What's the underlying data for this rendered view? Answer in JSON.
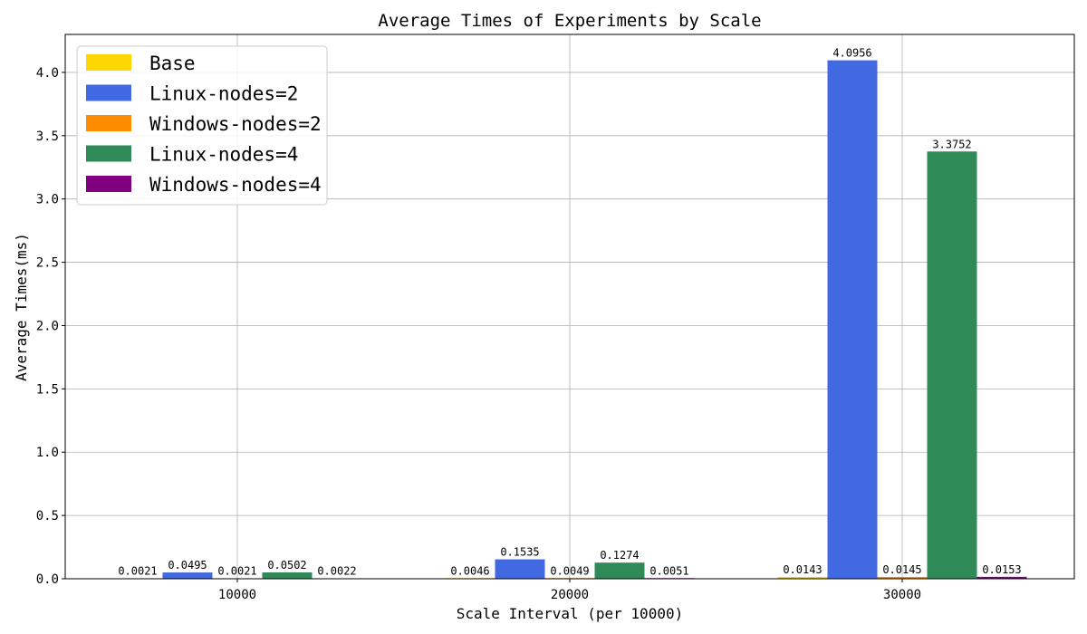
{
  "chart_data": {
    "type": "bar",
    "title": "Average Times of Experiments by Scale",
    "xlabel": "Scale Interval (per 10000)",
    "ylabel": "Average Times(ms)",
    "categories": [
      "10000",
      "20000",
      "30000"
    ],
    "ylim": [
      0,
      4.3
    ],
    "yticks": [
      "0.0",
      "0.5",
      "1.0",
      "1.5",
      "2.0",
      "2.5",
      "3.0",
      "3.5",
      "4.0"
    ],
    "grid": true,
    "legend_position": "top-left",
    "series": [
      {
        "name": "Base",
        "color": "#ffd700",
        "values": [
          0.0021,
          0.0046,
          0.0143
        ],
        "labels": [
          "0.0021",
          "0.0046",
          "0.0143"
        ]
      },
      {
        "name": "Linux-nodes=2",
        "color": "#4169e1",
        "values": [
          0.0495,
          0.1535,
          4.0956
        ],
        "labels": [
          "0.0495",
          "0.1535",
          "4.0956"
        ]
      },
      {
        "name": "Windows-nodes=2",
        "color": "#ff8c00",
        "values": [
          0.0021,
          0.0049,
          0.0145
        ],
        "labels": [
          "0.0021",
          "0.0049",
          "0.0145"
        ]
      },
      {
        "name": "Linux-nodes=4",
        "color": "#2e8b57",
        "values": [
          0.0502,
          0.1274,
          3.3752
        ],
        "labels": [
          "0.0502",
          "0.1274",
          "3.3752"
        ]
      },
      {
        "name": "Windows-nodes=4",
        "color": "#800080",
        "values": [
          0.0022,
          0.0051,
          0.0153
        ],
        "labels": [
          "0.0022",
          "0.0051",
          "0.0153"
        ]
      }
    ]
  }
}
